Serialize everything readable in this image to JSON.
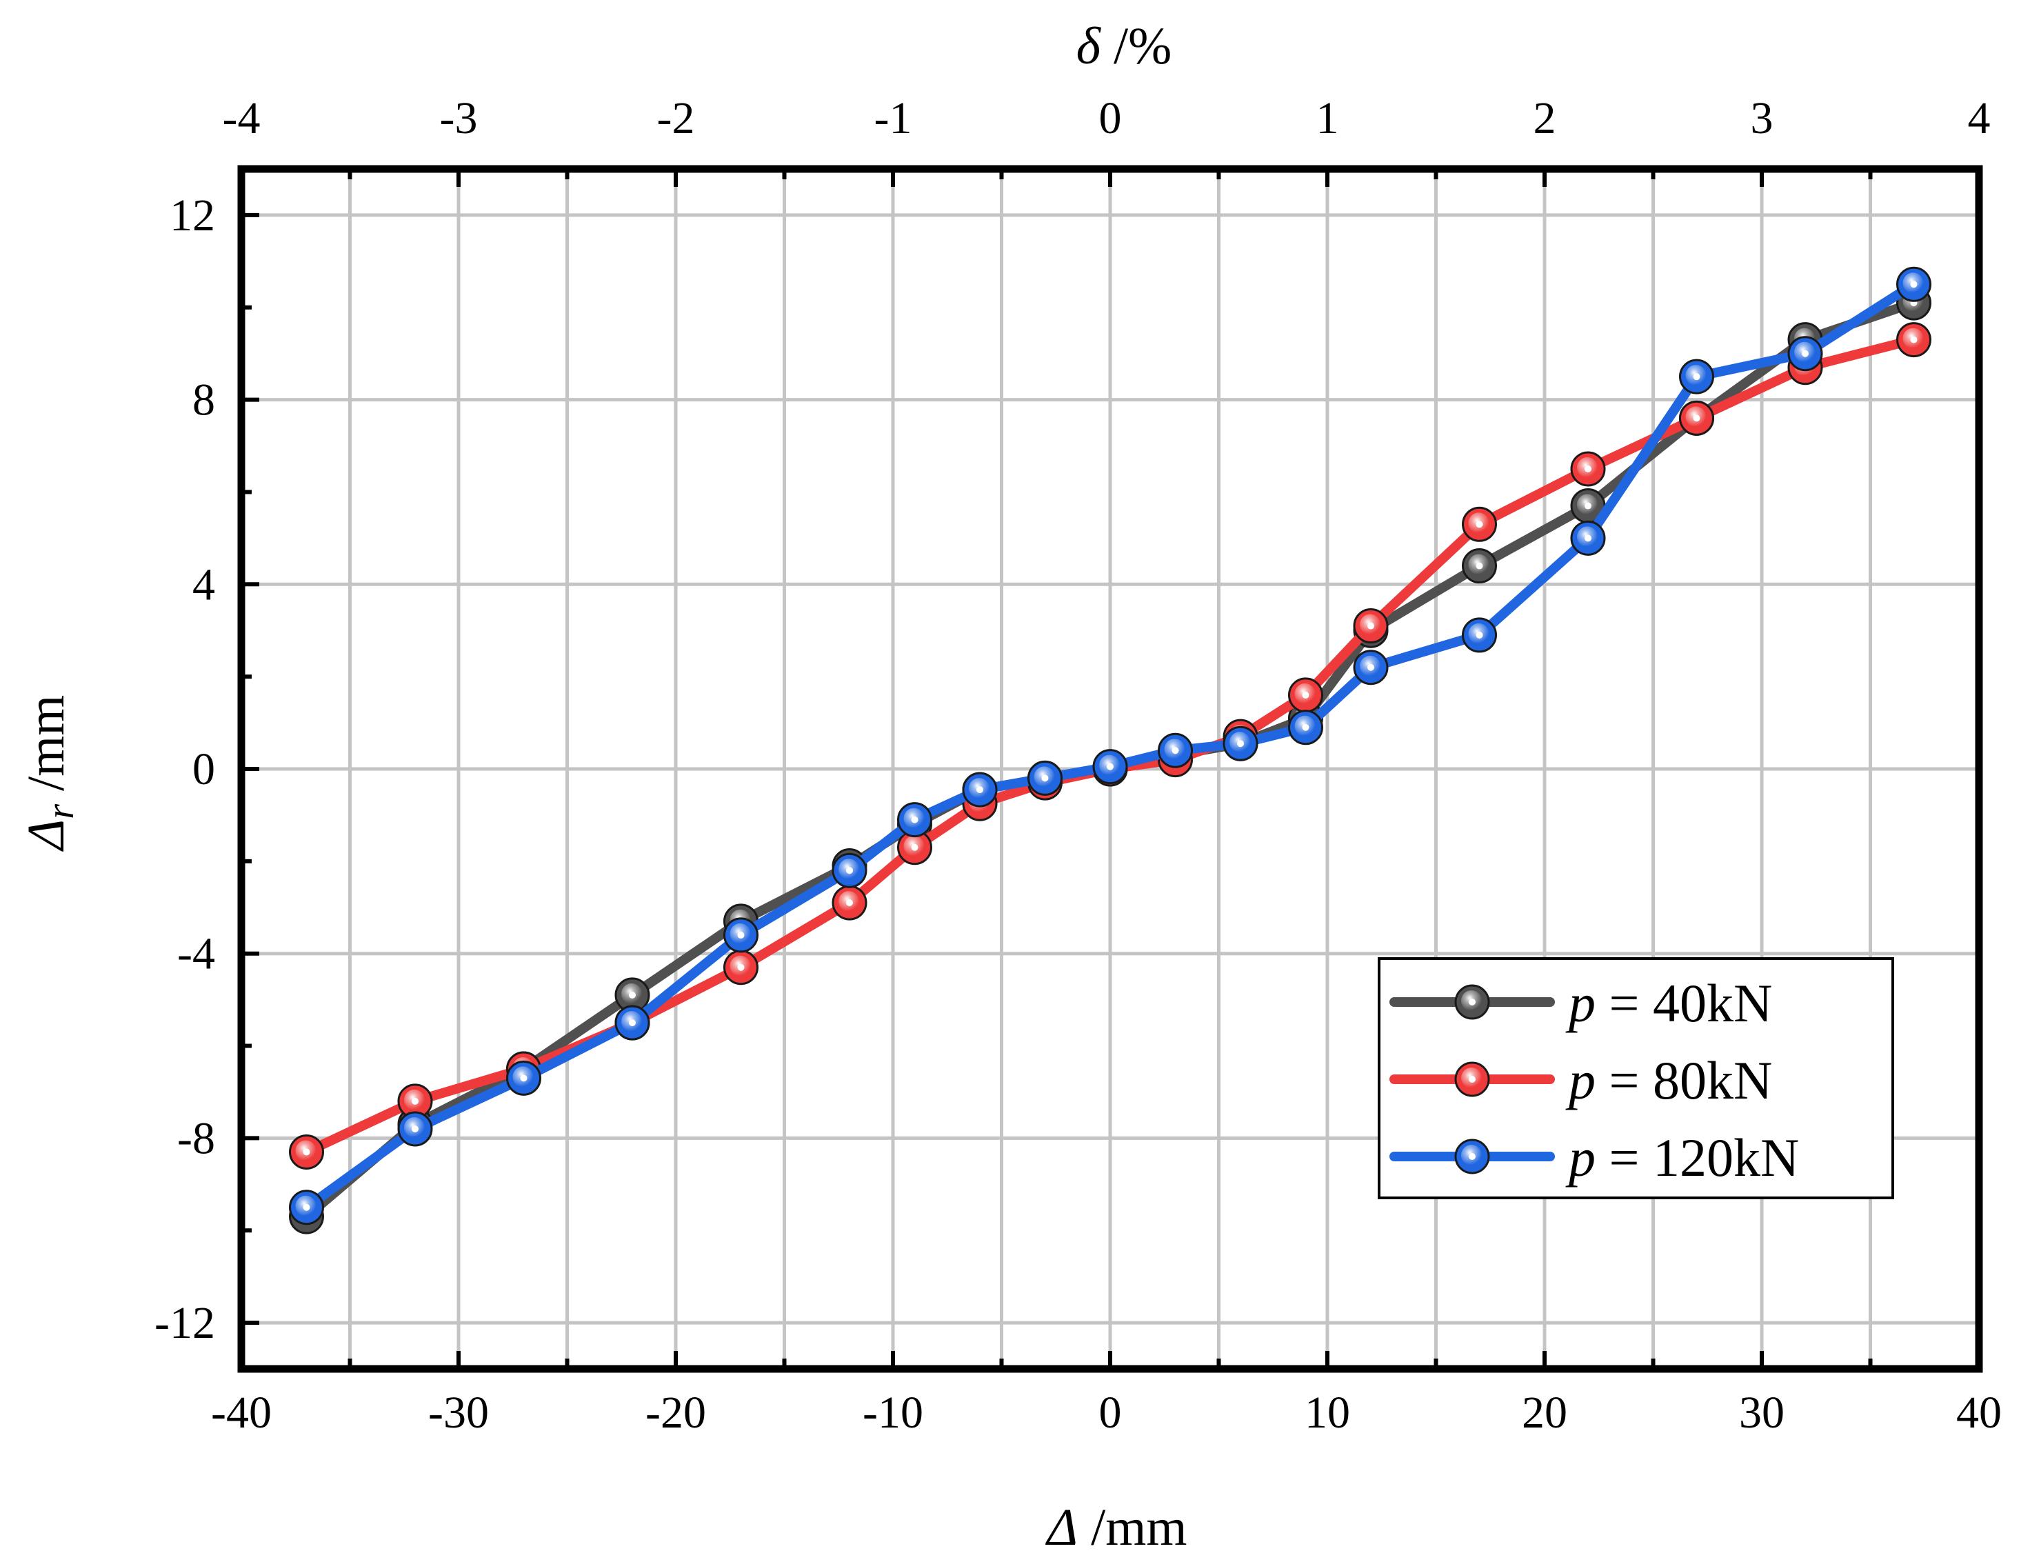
{
  "chart_data": {
    "type": "line",
    "xlabel": {
      "symbol": "Δ",
      "unit": " /mm"
    },
    "ylabel": {
      "symbol": "Δ",
      "subscript": "r",
      "unit": " /mm"
    },
    "x2label": {
      "symbol": "δ",
      "unit": " /%"
    },
    "xlim": [
      -40,
      40
    ],
    "ylim": [
      -13,
      13
    ],
    "x2lim": [
      -4,
      4
    ],
    "xticks": [
      "-40",
      "-30",
      "-20",
      "-10",
      "0",
      "10",
      "20",
      "30",
      "40"
    ],
    "yticks": [
      "-12",
      "-8",
      "-4",
      "0",
      "4",
      "8",
      "12"
    ],
    "x2ticks": [
      "-4",
      "-3",
      "-2",
      "-1",
      "0",
      "1",
      "2",
      "3",
      "4"
    ],
    "grid": true,
    "legend_position": "bottom-right",
    "series": [
      {
        "name": "p = 40kN",
        "label_var": "p",
        "label_rest": " = 40kN",
        "color": "#505050",
        "x": [
          -37,
          -32,
          -27,
          -22,
          -17,
          -12,
          -9,
          -6,
          -3,
          0,
          3,
          6,
          9,
          12,
          17,
          22,
          27,
          32,
          37
        ],
        "y": [
          -9.7,
          -7.7,
          -6.5,
          -4.9,
          -3.3,
          -2.1,
          -1.2,
          -0.45,
          -0.2,
          0,
          0.3,
          0.55,
          1.1,
          3.0,
          4.4,
          5.7,
          7.6,
          9.3,
          10.1
        ]
      },
      {
        "name": "p = 80kN",
        "label_var": "p",
        "label_rest": " = 80kN",
        "color": "#ee3a3a",
        "x": [
          -37,
          -32,
          -27,
          -22,
          -17,
          -12,
          -9,
          -6,
          -3,
          0,
          3,
          6,
          9,
          12,
          17,
          22,
          27,
          32,
          37
        ],
        "y": [
          -8.3,
          -7.2,
          -6.5,
          -5.5,
          -4.3,
          -2.9,
          -1.7,
          -0.75,
          -0.3,
          0,
          0.2,
          0.7,
          1.6,
          3.1,
          5.3,
          6.5,
          7.6,
          8.7,
          9.3
        ]
      },
      {
        "name": "p = 120kN",
        "label_var": "p",
        "label_rest": " = 120kN",
        "color": "#1f66e0",
        "x": [
          -37,
          -32,
          -27,
          -22,
          -17,
          -12,
          -9,
          -6,
          -3,
          0,
          3,
          6,
          9,
          12,
          17,
          22,
          27,
          32,
          37
        ],
        "y": [
          -9.5,
          -7.8,
          -6.7,
          -5.5,
          -3.6,
          -2.2,
          -1.1,
          -0.45,
          -0.2,
          0.05,
          0.4,
          0.55,
          0.9,
          2.2,
          2.9,
          5.0,
          8.5,
          9.0,
          10.5
        ]
      }
    ]
  }
}
